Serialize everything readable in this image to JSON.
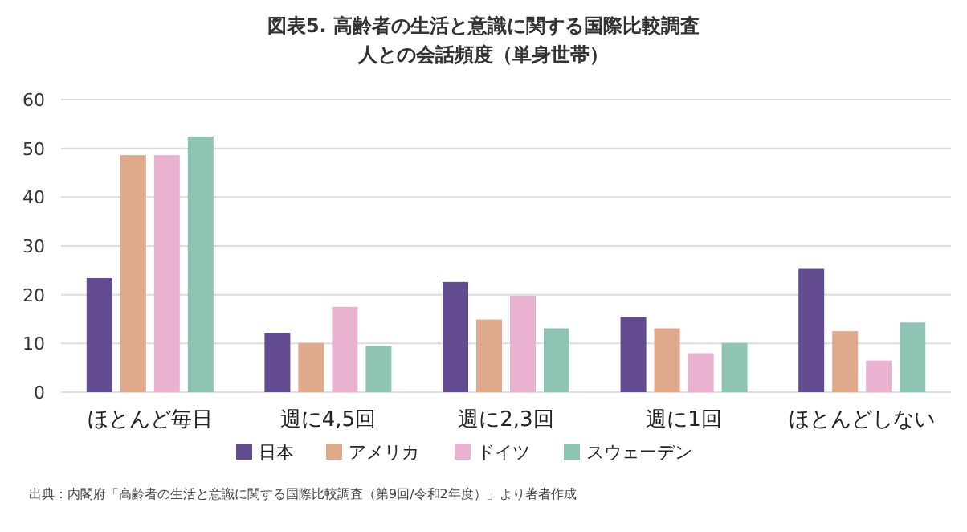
{
  "chart_data": {
    "type": "bar",
    "title": "図表5. 高齢者の生活と意識に関する国際比較調査",
    "subtitle": "人との会話頻度（単身世帯）",
    "categories": [
      "ほとんど毎日",
      "週に4,5回",
      "週に2,3回",
      "週に1回",
      "ほとんどしない"
    ],
    "series": [
      {
        "name": "日本",
        "color": "#634b8f",
        "values": [
          23.4,
          12.2,
          22.6,
          15.4,
          25.3
        ]
      },
      {
        "name": "アメリカ",
        "color": "#dfa98c",
        "values": [
          48.6,
          10.1,
          14.9,
          13.1,
          12.5
        ]
      },
      {
        "name": "ドイツ",
        "color": "#e8b1cf",
        "values": [
          48.6,
          17.5,
          19.8,
          8.0,
          6.5
        ]
      },
      {
        "name": "スウェーデン",
        "color": "#8ec4b3",
        "values": [
          52.4,
          9.5,
          13.1,
          10.1,
          14.3
        ]
      }
    ],
    "ylim": [
      0,
      60
    ],
    "yticks": [
      0,
      10,
      20,
      30,
      40,
      50,
      60
    ],
    "grid": "y",
    "legend": "bottom",
    "annotations": [
      "出典：内閣府「高齢者の生活と意識に関する国際比較調査（第9回/令和2年度）」より著者作成"
    ]
  }
}
